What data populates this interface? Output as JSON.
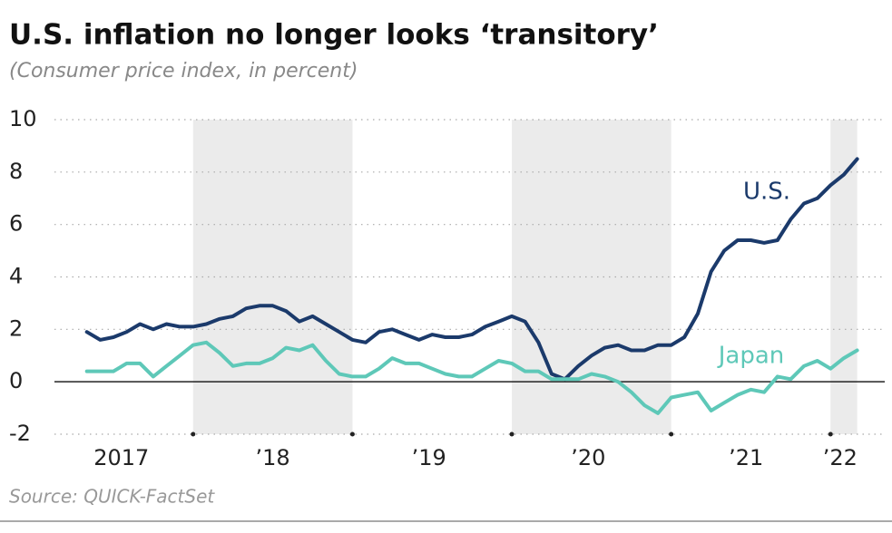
{
  "chart_data": {
    "type": "line",
    "title": "U.S. inflation no longer looks ‘transitory’",
    "subtitle": "(Consumer price index, in percent)",
    "source": "Source: QUICK-FactSet",
    "x": [
      2017.333,
      2017.417,
      2017.5,
      2017.583,
      2017.667,
      2017.75,
      2017.833,
      2017.917,
      2018,
      2018.083,
      2018.167,
      2018.25,
      2018.333,
      2018.417,
      2018.5,
      2018.583,
      2018.667,
      2018.75,
      2018.833,
      2018.917,
      2019,
      2019.083,
      2019.167,
      2019.25,
      2019.333,
      2019.417,
      2019.5,
      2019.583,
      2019.667,
      2019.75,
      2019.833,
      2019.917,
      2020,
      2020.083,
      2020.167,
      2020.25,
      2020.333,
      2020.417,
      2020.5,
      2020.583,
      2020.667,
      2020.75,
      2020.833,
      2020.917,
      2021,
      2021.083,
      2021.167,
      2021.25,
      2021.333,
      2021.417,
      2021.5,
      2021.583,
      2021.667,
      2021.75,
      2021.833,
      2021.917,
      2022,
      2022.083,
      2022.167
    ],
    "series": [
      {
        "name": "U.S.",
        "color": "#1b3a6b",
        "values": [
          1.9,
          1.6,
          1.7,
          1.9,
          2.2,
          2.0,
          2.2,
          2.1,
          2.1,
          2.2,
          2.4,
          2.5,
          2.8,
          2.9,
          2.9,
          2.7,
          2.3,
          2.5,
          2.2,
          1.9,
          1.6,
          1.5,
          1.9,
          2.0,
          1.8,
          1.6,
          1.8,
          1.7,
          1.7,
          1.8,
          2.1,
          2.3,
          2.5,
          2.3,
          1.5,
          0.3,
          0.1,
          0.6,
          1.0,
          1.3,
          1.4,
          1.2,
          1.2,
          1.4,
          1.4,
          1.7,
          2.6,
          4.2,
          5.0,
          5.4,
          5.4,
          5.3,
          5.4,
          6.2,
          6.8,
          7.0,
          7.5,
          7.9,
          8.5
        ]
      },
      {
        "name": "Japan",
        "color": "#5ec8b8",
        "values": [
          0.4,
          0.4,
          0.4,
          0.7,
          0.7,
          0.2,
          0.6,
          1.0,
          1.4,
          1.5,
          1.1,
          0.6,
          0.7,
          0.7,
          0.9,
          1.3,
          1.2,
          1.4,
          0.8,
          0.3,
          0.2,
          0.2,
          0.5,
          0.9,
          0.7,
          0.7,
          0.5,
          0.3,
          0.2,
          0.2,
          0.5,
          0.8,
          0.7,
          0.4,
          0.4,
          0.1,
          0.1,
          0.1,
          0.3,
          0.2,
          0.0,
          -0.4,
          -0.9,
          -1.2,
          -0.6,
          -0.5,
          -0.4,
          -1.1,
          -0.8,
          -0.5,
          -0.3,
          -0.4,
          0.2,
          0.1,
          0.6,
          0.8,
          0.5,
          0.9,
          1.2
        ]
      }
    ],
    "xlim": [
      2017.13,
      2022.34
    ],
    "xticks": [
      {
        "value": 2017.55,
        "label": "2017"
      },
      {
        "value": 2018.5,
        "label": "’18"
      },
      {
        "value": 2019.48,
        "label": "’19"
      },
      {
        "value": 2020.48,
        "label": "’20"
      },
      {
        "value": 2021.47,
        "label": "’21"
      },
      {
        "value": 2022.06,
        "label": "’22"
      }
    ],
    "year_marks": [
      2018,
      2019,
      2020,
      2021,
      2022
    ],
    "bands": [
      [
        2018,
        2019
      ],
      [
        2020,
        2021
      ],
      [
        2022,
        2022.167
      ]
    ],
    "ylim": [
      -2,
      10
    ],
    "yticks": [
      -2,
      0,
      2,
      4,
      6,
      8,
      10
    ],
    "grid": true
  }
}
